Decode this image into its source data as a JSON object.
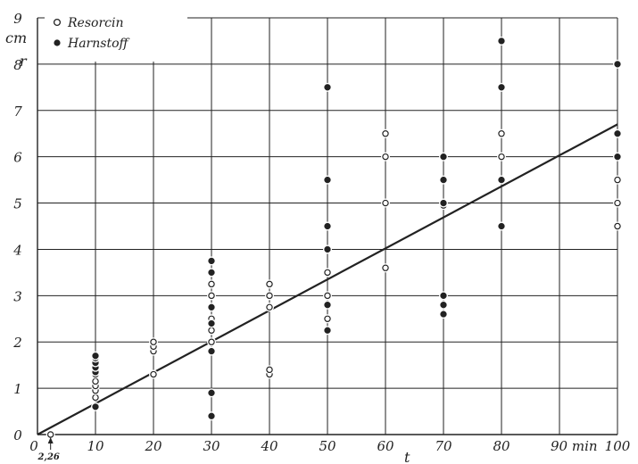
{
  "chart_data": {
    "type": "scatter",
    "title": "",
    "xlabel": "t",
    "ylabel": "r",
    "y_unit": "cm",
    "x_unit": "min",
    "xlim": [
      0,
      100
    ],
    "ylim": [
      0,
      9
    ],
    "x_ticks": [
      0,
      10,
      20,
      30,
      40,
      50,
      60,
      70,
      80,
      90,
      100
    ],
    "x_tick_labels": [
      "0",
      "10",
      "20",
      "30",
      "40",
      "50",
      "60",
      "70",
      "80",
      "90 min",
      "100"
    ],
    "y_ticks": [
      0,
      1,
      2,
      3,
      4,
      5,
      6,
      7,
      8,
      9
    ],
    "y_tick_labels": [
      "0",
      "1",
      "2",
      "3",
      "4",
      "5",
      "6",
      "7",
      "8",
      "9"
    ],
    "grid": true,
    "legend_position": "top-left",
    "annotation": {
      "text": "2,26",
      "x": 2.26,
      "y": 0
    },
    "series": [
      {
        "name": "Resorcin",
        "marker": "open-circle",
        "points": [
          [
            2.26,
            0
          ],
          [
            10,
            0.8
          ],
          [
            10,
            0.95
          ],
          [
            10,
            1.05
          ],
          [
            10,
            1.15
          ],
          [
            10,
            1.3
          ],
          [
            20,
            1.3
          ],
          [
            20,
            1.8
          ],
          [
            20,
            1.9
          ],
          [
            20,
            2.0
          ],
          [
            30,
            2.0
          ],
          [
            30,
            2.25
          ],
          [
            30,
            2.5
          ],
          [
            30,
            3.0
          ],
          [
            30,
            3.25
          ],
          [
            40,
            1.3
          ],
          [
            40,
            1.4
          ],
          [
            40,
            2.75
          ],
          [
            40,
            3.0
          ],
          [
            40,
            3.25
          ],
          [
            50,
            2.5
          ],
          [
            50,
            3.0
          ],
          [
            50,
            3.5
          ],
          [
            60,
            3.6
          ],
          [
            60,
            5.0
          ],
          [
            60,
            6.0
          ],
          [
            60,
            6.5
          ],
          [
            70,
            4.95
          ],
          [
            80,
            5.5
          ],
          [
            80,
            6.0
          ],
          [
            80,
            6.5
          ],
          [
            100,
            4.5
          ],
          [
            100,
            5.0
          ],
          [
            100,
            5.5
          ]
        ]
      },
      {
        "name": "Harnstoff",
        "marker": "filled-circle",
        "points": [
          [
            10,
            0.6
          ],
          [
            10,
            1.35
          ],
          [
            10,
            1.45
          ],
          [
            10,
            1.55
          ],
          [
            10,
            1.65
          ],
          [
            10,
            1.7
          ],
          [
            30,
            0.4
          ],
          [
            30,
            0.9
          ],
          [
            30,
            1.8
          ],
          [
            30,
            2.4
          ],
          [
            30,
            2.75
          ],
          [
            30,
            3.5
          ],
          [
            30,
            3.75
          ],
          [
            50,
            2.25
          ],
          [
            50,
            2.8
          ],
          [
            50,
            4.0
          ],
          [
            50,
            4.5
          ],
          [
            50,
            5.5
          ],
          [
            50,
            7.5
          ],
          [
            70,
            2.6
          ],
          [
            70,
            2.8
          ],
          [
            70,
            3.0
          ],
          [
            70,
            5.0
          ],
          [
            70,
            5.5
          ],
          [
            70,
            6.0
          ],
          [
            80,
            4.5
          ],
          [
            80,
            5.5
          ],
          [
            80,
            7.5
          ],
          [
            80,
            8.5
          ],
          [
            100,
            6.0
          ],
          [
            100,
            6.5
          ],
          [
            100,
            8.0
          ]
        ]
      }
    ],
    "fit_line": {
      "from": [
        0,
        0
      ],
      "to": [
        100,
        6.7
      ]
    }
  }
}
